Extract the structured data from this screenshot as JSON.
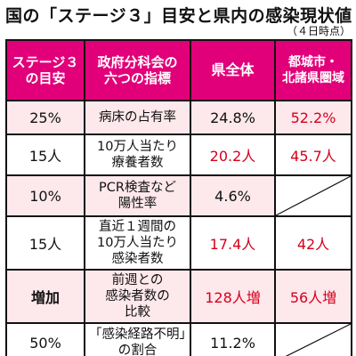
{
  "title": "国の「ステージ３」目安と県内の感染現状値",
  "subtitle": "（４日時点）",
  "headers": {
    "col1": [
      "ステージ３",
      "の目安"
    ],
    "col2": [
      "政府分科会の",
      "六つの指標"
    ],
    "col3": "県全体",
    "col4": [
      "都城市・",
      "北諸県圏域"
    ]
  },
  "rows": [
    {
      "target": "25%",
      "indicator": [
        "病床の占有率"
      ],
      "pref": "24.8%",
      "district": "52.2%",
      "pref_red": false,
      "district_red": true
    },
    {
      "target": "15人",
      "indicator": [
        "10万人当たり",
        "療養者数"
      ],
      "pref": "20.2人",
      "district": "45.7人",
      "pref_red": true,
      "district_red": true
    },
    {
      "target": "10%",
      "indicator": [
        "PCR検査など",
        "陽性率"
      ],
      "pref": "4.6%",
      "district": null,
      "pref_red": false,
      "district_red": false
    },
    {
      "target": "15人",
      "indicator": [
        "直近１週間の",
        "10万人当たり",
        "感染者数"
      ],
      "pref": "17.4人",
      "district": "42人",
      "pref_red": true,
      "district_red": true
    },
    {
      "target": "増加",
      "indicator": [
        "前週との",
        "感染者数の",
        "比較"
      ],
      "pref": "128人増",
      "district": "56人増",
      "pref_red": true,
      "district_red": true,
      "target_bold": true
    },
    {
      "target": "50%",
      "indicator": [
        "「感染経路不明」",
        "の割合"
      ],
      "pref": "11.2%",
      "district": null,
      "pref_red": false,
      "district_red": false
    }
  ],
  "colors": {
    "header_bg": "#e2007a",
    "highlight_text": "#d6001c",
    "alt_row_bg": "#fde8ec"
  }
}
